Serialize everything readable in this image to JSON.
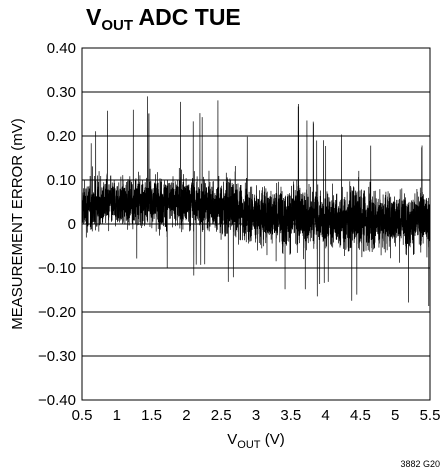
{
  "chart_data": {
    "type": "line",
    "title_main": "V",
    "title_sub": "OUT",
    "title_rest": " ADC TUE",
    "xlabel_main": "V",
    "xlabel_sub": "OUT",
    "xlabel_rest": " (V)",
    "ylabel": "MEASUREMENT ERROR (mV)",
    "figure_id": "3882 G20",
    "xlim": [
      0.5,
      5.5
    ],
    "ylim": [
      -0.4,
      0.4
    ],
    "xticks": [
      "0.5",
      "1",
      "1.5",
      "2",
      "2.5",
      "3",
      "3.5",
      "4",
      "4.5",
      "5",
      "5.5"
    ],
    "yticks": [
      "0.40",
      "0.30",
      "0.20",
      "0.10",
      "0",
      "−0.10",
      "−0.20",
      "−0.30",
      "−0.40"
    ],
    "grid": "horizontal",
    "series": [
      {
        "color": "#000000",
        "description": "dense noise band",
        "x": [
          0.5,
          1.0,
          1.5,
          2.0,
          2.5,
          3.0,
          3.5,
          4.0,
          4.5,
          5.0,
          5.5
        ],
        "mean": [
          0.04,
          0.05,
          0.05,
          0.05,
          0.04,
          0.02,
          0.02,
          0.01,
          0.01,
          0.01,
          0.01
        ],
        "max": [
          0.2,
          0.3,
          0.29,
          0.28,
          0.31,
          0.22,
          0.3,
          0.22,
          0.23,
          0.2,
          0.18
        ],
        "min": [
          -0.14,
          -0.1,
          -0.12,
          -0.12,
          -0.14,
          -0.18,
          -0.18,
          -0.17,
          -0.2,
          -0.21,
          -0.22
        ]
      }
    ]
  }
}
